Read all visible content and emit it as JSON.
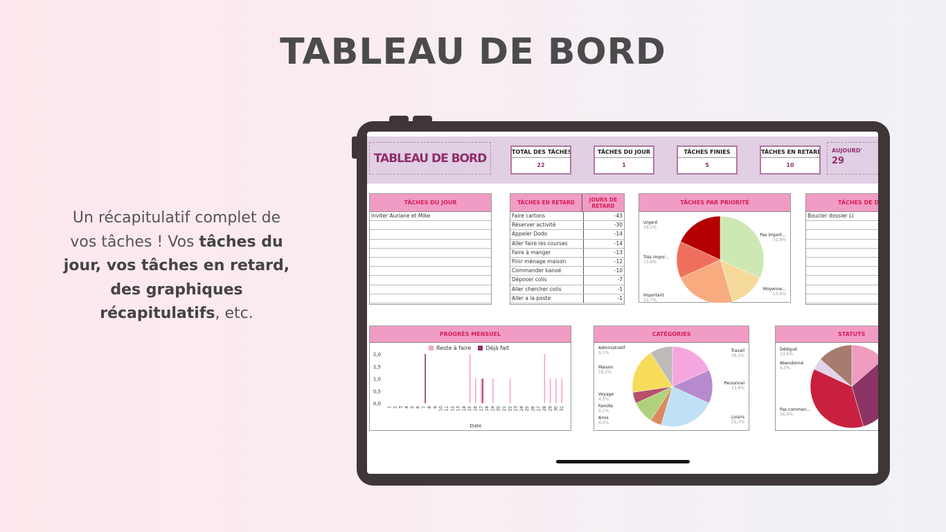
{
  "page": {
    "title": "TABLEAU DE BORD",
    "blurb": {
      "p1": "Un récapitulatif complet de vos tâches ! Vos ",
      "b1": "tâches du jour, vos tâches en retard, des graphiques récapitulatifs",
      "p2": ", etc."
    }
  },
  "dashboard": {
    "title": "TABLEAU DE BORD",
    "kpis": [
      {
        "label": "TOTAL DES TÂCHES",
        "value": "22"
      },
      {
        "label": "TÂCHES  DU JOUR",
        "value": "1"
      },
      {
        "label": "TÂCHES FINIES",
        "value": "5"
      },
      {
        "label": "TÂCHES EN RETARD",
        "value": "10"
      }
    ],
    "today": {
      "label": "AUJOURD'",
      "value": "29"
    },
    "today_tasks": {
      "header": "TÂCHES DU JOUR",
      "rows": [
        "Inviter Auriane et Mike"
      ]
    },
    "late_tasks": {
      "header": "TÂCHES EN RETARD",
      "days_header": "JOURS DE RETARD",
      "rows": [
        {
          "task": "Faire cartons",
          "days": "-43"
        },
        {
          "task": "Réserver activité",
          "days": "-30"
        },
        {
          "task": "Appeler Dodo",
          "days": "-14"
        },
        {
          "task": "Aller faire les courses",
          "days": "-14"
        },
        {
          "task": "Faire à manger",
          "days": "-13"
        },
        {
          "task": "Finir ménage maison",
          "days": "-12"
        },
        {
          "task": "Commander kanoé",
          "days": "-10"
        },
        {
          "task": "Déposer colis",
          "days": "-7"
        },
        {
          "task": "Aller chercher colis",
          "days": "-1"
        },
        {
          "task": "Aller a la poste",
          "days": "-1"
        }
      ]
    },
    "deadline_tasks": {
      "header": "TÂCHES DE DE",
      "rows": [
        "Boucler dossier LI"
      ]
    }
  },
  "chart_data": [
    {
      "type": "pie",
      "title": "TÂCHES PAR PRIORITÉ",
      "slices": [
        {
          "name": "Pas import...",
          "value": 31.8,
          "label": "31,8%",
          "color": "#cde8b3"
        },
        {
          "name": "Moyenne...",
          "value": 13.6,
          "label": "13,6%",
          "color": "#f6da9b"
        },
        {
          "name": "Important",
          "value": 22.7,
          "label": "22,7%",
          "color": "#f9ab80"
        },
        {
          "name": "Très impor...",
          "value": 13.6,
          "label": "13,6%",
          "color": "#ef6f5c"
        },
        {
          "name": "Urgent",
          "value": 18.2,
          "label": "18,2%",
          "color": "#b40000"
        }
      ]
    },
    {
      "type": "bar",
      "title": "PROGRÈS MENSUEL",
      "xlabel": "Date",
      "ylim": [
        0,
        2
      ],
      "yticks": [
        "0,0",
        "0,5",
        "1,0",
        "1,5",
        "2,0"
      ],
      "categories": [
        "1",
        "2",
        "3",
        "4",
        "5",
        "6",
        "7",
        "8",
        "9",
        "10",
        "11",
        "12",
        "13",
        "14",
        "15",
        "16",
        "17",
        "18",
        "19",
        "20",
        "21",
        "22",
        "23",
        "24",
        "25",
        "26",
        "27",
        "28",
        "29",
        "30",
        "31"
      ],
      "series": [
        {
          "name": "Reste à faire",
          "color": "#f4a3c8",
          "values": [
            0,
            0,
            0,
            0,
            0,
            0,
            0,
            0,
            0,
            0,
            0,
            0,
            0,
            0,
            2,
            1,
            1,
            0,
            1,
            0,
            0,
            1,
            0,
            0,
            0,
            0,
            0,
            2,
            1,
            1,
            1
          ]
        },
        {
          "name": "Déjà fait",
          "color": "#8e2f6a",
          "values": [
            0,
            0,
            0,
            0,
            0,
            0,
            2,
            0,
            0,
            0,
            0,
            0,
            0,
            0,
            0,
            0,
            1,
            0,
            0,
            0,
            0,
            0,
            0,
            0,
            0,
            0,
            0,
            0,
            0,
            0,
            0
          ]
        }
      ],
      "legend": "top"
    },
    {
      "type": "pie",
      "title": "CATÉGORIES",
      "slices": [
        {
          "name": "Travail",
          "value": 18.2,
          "label": "18,2%",
          "color": "#f4a7df"
        },
        {
          "name": "Personnel",
          "value": 13.6,
          "label": "13,6%",
          "color": "#b78acd"
        },
        {
          "name": "Loisirs",
          "value": 22.7,
          "label": "22,7%",
          "color": "#c0e1f5"
        },
        {
          "name": "Amis",
          "value": 4.5,
          "label": "4,5%",
          "color": "#da8a5e"
        },
        {
          "name": "Famille",
          "value": 9.1,
          "label": "9,1%",
          "color": "#afd17b"
        },
        {
          "name": "Voyage",
          "value": 4.5,
          "label": "4,5%",
          "color": "#b6506b"
        },
        {
          "name": "Maison",
          "value": 18.2,
          "label": "18,2%",
          "color": "#f7dc5b"
        },
        {
          "name": "Administratif",
          "value": 9.1,
          "label": "9,1%",
          "color": "#bfbab7"
        }
      ]
    },
    {
      "type": "pie",
      "title": "STATUTS",
      "slices": [
        {
          "value": 13.6,
          "color": "#f09cc1"
        },
        {
          "value": 31.9,
          "color": "#8d3466"
        },
        {
          "name": "Pas commen...",
          "value": 36.4,
          "label": "36,4%",
          "color": "#c9203f"
        },
        {
          "name": "Abandonné",
          "value": 4.5,
          "label": "4,5%",
          "color": "#e2d2ea"
        },
        {
          "name": "Délégué",
          "value": 13.6,
          "label": "13,6%",
          "color": "#a67c6f"
        }
      ]
    }
  ]
}
